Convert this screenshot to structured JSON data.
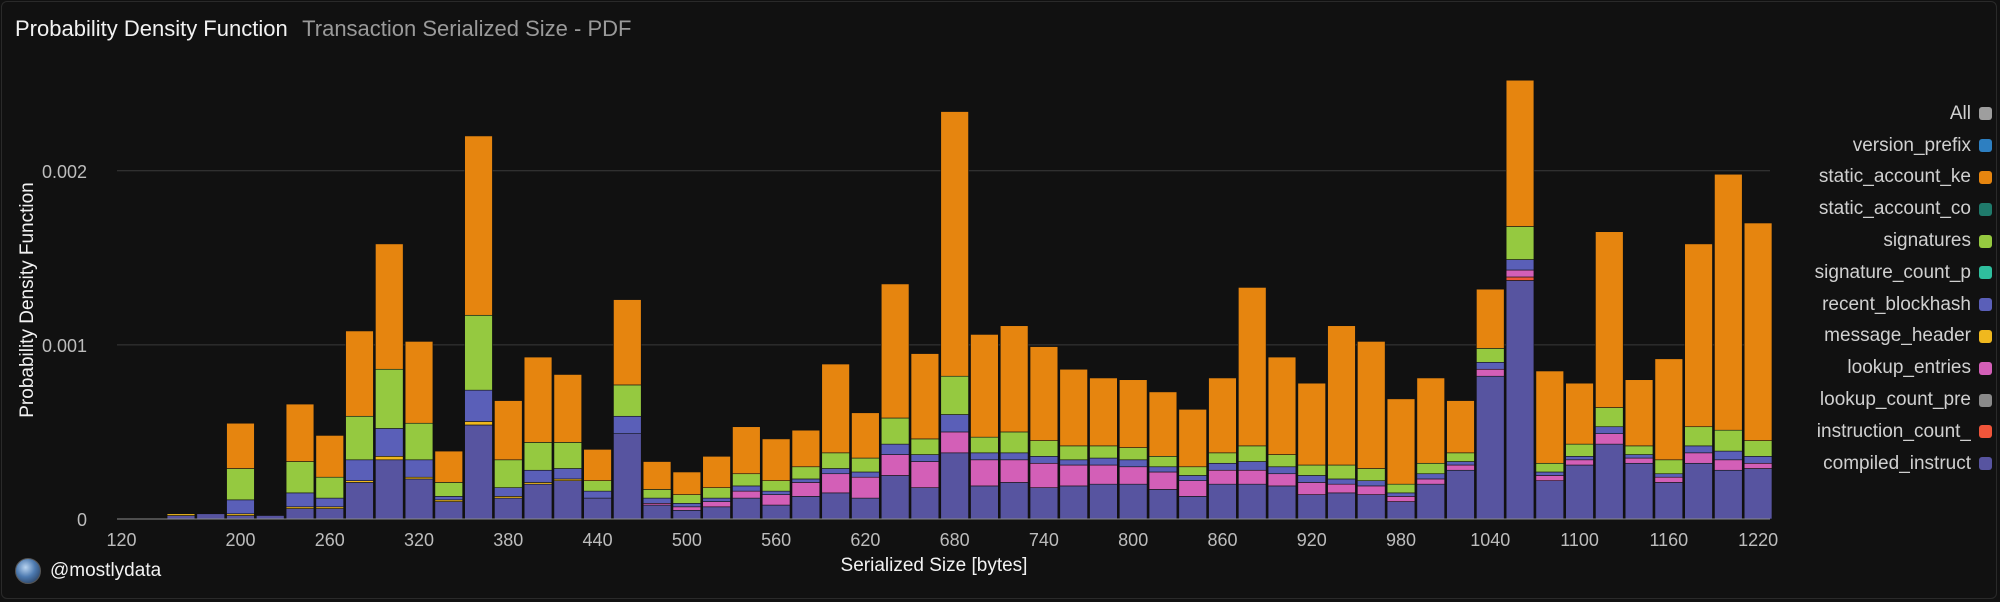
{
  "header": {
    "title": "Probability Density Function",
    "subtitle": "Transaction Serialized Size - PDF"
  },
  "footer": {
    "handle": "@mostlydata",
    "avatar_icon": "globe-avatar-icon"
  },
  "legend": {
    "items": [
      {
        "label": "All",
        "color": "#9e9e9e"
      },
      {
        "label": "version_prefix",
        "color": "#2d7fc1"
      },
      {
        "label": "static_account_ke",
        "color": "#e6850f"
      },
      {
        "label": "static_account_co",
        "color": "#1f7a6b"
      },
      {
        "label": "signatures",
        "color": "#95c940"
      },
      {
        "label": "signature_count_p",
        "color": "#2fbf9e"
      },
      {
        "label": "recent_blockhash",
        "color": "#5a5fb8"
      },
      {
        "label": "message_header",
        "color": "#f0b81e"
      },
      {
        "label": "lookup_entries",
        "color": "#d35fb7"
      },
      {
        "label": "lookup_count_pre",
        "color": "#8a8a8a"
      },
      {
        "label": "instruction_count_",
        "color": "#f0553a"
      },
      {
        "label": "compiled_instruct",
        "color": "#5754a0"
      }
    ]
  },
  "chart_data": {
    "type": "bar",
    "stacked": true,
    "title": "Probability Density Function",
    "subtitle": "Transaction Serialized Size - PDF",
    "xlabel": "Serialized Size [bytes]",
    "ylabel": "Probability Density Function",
    "xlim": [
      117,
      1228
    ],
    "ylim": [
      0,
      0.00255
    ],
    "bin_width": 20,
    "x_ticks": [
      120,
      200,
      260,
      320,
      380,
      440,
      500,
      560,
      620,
      680,
      740,
      800,
      860,
      920,
      980,
      1040,
      1100,
      1160,
      1220
    ],
    "y_ticks": [
      {
        "value": 0,
        "label": "0"
      },
      {
        "value": 0.001,
        "label": "0.001"
      },
      {
        "value": 0.002,
        "label": "0.002"
      }
    ],
    "grid": true,
    "legend_position": "right",
    "x": [
      160,
      180,
      200,
      220,
      240,
      260,
      280,
      300,
      320,
      340,
      360,
      380,
      400,
      420,
      440,
      460,
      480,
      500,
      520,
      540,
      560,
      580,
      600,
      620,
      640,
      660,
      680,
      700,
      720,
      740,
      760,
      780,
      800,
      820,
      840,
      860,
      880,
      900,
      920,
      940,
      960,
      980,
      1000,
      1020,
      1040,
      1060,
      1080,
      1100,
      1120,
      1140,
      1160,
      1180,
      1200,
      1220
    ],
    "series": [
      {
        "name": "compiled_instruct",
        "color": "#5754a0",
        "values": [
          2e-05,
          3e-05,
          2e-05,
          2e-05,
          6e-05,
          6e-05,
          0.00021,
          0.00034,
          0.00023,
          0.0001,
          0.00054,
          0.00012,
          0.0002,
          0.00022,
          0.00012,
          0.00049,
          8e-05,
          5e-05,
          7e-05,
          0.00012,
          8e-05,
          0.00013,
          0.00015,
          0.00012,
          0.00025,
          0.00018,
          0.00038,
          0.00019,
          0.00021,
          0.00018,
          0.00019,
          0.0002,
          0.0002,
          0.00017,
          0.00013,
          0.0002,
          0.0002,
          0.00019,
          0.00014,
          0.00015,
          0.00014,
          0.0001,
          0.0002,
          0.00028,
          0.00082,
          0.00137,
          0.00022,
          0.00031,
          0.00043,
          0.00032,
          0.00021,
          0.00032,
          0.00028,
          0.00029
        ]
      },
      {
        "name": "instruction_count_",
        "color": "#f0553a",
        "values": [
          0,
          0,
          0,
          0,
          0,
          0,
          0,
          0,
          0,
          0,
          0,
          0,
          0,
          0,
          0,
          0,
          0,
          0,
          0,
          0,
          0,
          0,
          0,
          0,
          0,
          0,
          0,
          0,
          0,
          0,
          0,
          0,
          0,
          0,
          0,
          0,
          0,
          0,
          0,
          0,
          0,
          0,
          0,
          0,
          0,
          2e-05,
          0,
          0,
          0,
          0,
          0,
          0,
          0,
          0
        ]
      },
      {
        "name": "lookup_entries",
        "color": "#d35fb7",
        "values": [
          0,
          0,
          0,
          0,
          0,
          0,
          0,
          0,
          0,
          0,
          0,
          0,
          0,
          0,
          0,
          0,
          1e-05,
          2e-05,
          3e-05,
          4e-05,
          6e-05,
          8e-05,
          0.00011,
          0.00012,
          0.00012,
          0.00015,
          0.00012,
          0.00015,
          0.00013,
          0.00014,
          0.00012,
          0.00011,
          0.0001,
          0.0001,
          9e-05,
          8e-05,
          8e-05,
          7e-05,
          7e-05,
          5e-05,
          5e-05,
          3e-05,
          3e-05,
          3e-05,
          4e-05,
          4e-05,
          3e-05,
          3e-05,
          6e-05,
          3e-05,
          3e-05,
          6e-05,
          6e-05,
          3e-05
        ]
      },
      {
        "name": "message_header",
        "color": "#f0b81e",
        "values": [
          1e-05,
          0,
          1e-05,
          0,
          1e-05,
          1e-05,
          1e-05,
          2e-05,
          1e-05,
          1e-05,
          2e-05,
          1e-05,
          1e-05,
          1e-05,
          0,
          0,
          0,
          0,
          0,
          0,
          0,
          0,
          0,
          0,
          0,
          0,
          0,
          0,
          0,
          0,
          0,
          0,
          0,
          0,
          0,
          0,
          0,
          0,
          0,
          0,
          0,
          0,
          0,
          0,
          0,
          0,
          0,
          0,
          0,
          0,
          0,
          0,
          0,
          0
        ]
      },
      {
        "name": "recent_blockhash",
        "color": "#5a5fb8",
        "values": [
          0,
          0,
          8e-05,
          0,
          8e-05,
          5e-05,
          0.00012,
          0.00016,
          0.0001,
          2e-05,
          0.00018,
          5e-05,
          7e-05,
          6e-05,
          4e-05,
          0.0001,
          3e-05,
          2e-05,
          2e-05,
          3e-05,
          2e-05,
          2e-05,
          3e-05,
          3e-05,
          6e-05,
          4e-05,
          0.0001,
          4e-05,
          4e-05,
          4e-05,
          3e-05,
          4e-05,
          4e-05,
          3e-05,
          3e-05,
          4e-05,
          5e-05,
          4e-05,
          4e-05,
          3e-05,
          3e-05,
          2e-05,
          3e-05,
          2e-05,
          4e-05,
          6e-05,
          2e-05,
          2e-05,
          4e-05,
          2e-05,
          2e-05,
          4e-05,
          5e-05,
          4e-05
        ]
      },
      {
        "name": "signatures",
        "color": "#95c940",
        "values": [
          0,
          0,
          0.00018,
          0,
          0.00018,
          0.00012,
          0.00025,
          0.00034,
          0.00021,
          8e-05,
          0.00043,
          0.00016,
          0.00016,
          0.00015,
          6e-05,
          0.00018,
          5e-05,
          5e-05,
          6e-05,
          7e-05,
          6e-05,
          7e-05,
          9e-05,
          8e-05,
          0.00015,
          9e-05,
          0.00022,
          9e-05,
          0.00012,
          9e-05,
          8e-05,
          7e-05,
          7e-05,
          6e-05,
          5e-05,
          6e-05,
          9e-05,
          7e-05,
          6e-05,
          8e-05,
          7e-05,
          5e-05,
          6e-05,
          5e-05,
          8e-05,
          0.00019,
          5e-05,
          7e-05,
          0.00011,
          5e-05,
          8e-05,
          0.00011,
          0.00012,
          9e-05
        ]
      },
      {
        "name": "static_account_ke",
        "color": "#e6850f",
        "values": [
          0,
          0,
          0.00026,
          0,
          0.00033,
          0.00024,
          0.00049,
          0.00072,
          0.00047,
          0.00018,
          0.00103,
          0.00034,
          0.00049,
          0.00039,
          0.00018,
          0.00049,
          0.00016,
          0.00013,
          0.00018,
          0.00027,
          0.00024,
          0.00021,
          0.00051,
          0.00026,
          0.00077,
          0.00049,
          0.00152,
          0.00059,
          0.00061,
          0.00054,
          0.00044,
          0.00039,
          0.00039,
          0.00037,
          0.00033,
          0.00043,
          0.00091,
          0.00056,
          0.00047,
          0.0008,
          0.00073,
          0.00049,
          0.00049,
          0.0003,
          0.00034,
          0.00084,
          0.00053,
          0.00035,
          0.00101,
          0.00038,
          0.00058,
          0.00105,
          0.00147,
          0.00125
        ]
      }
    ]
  }
}
